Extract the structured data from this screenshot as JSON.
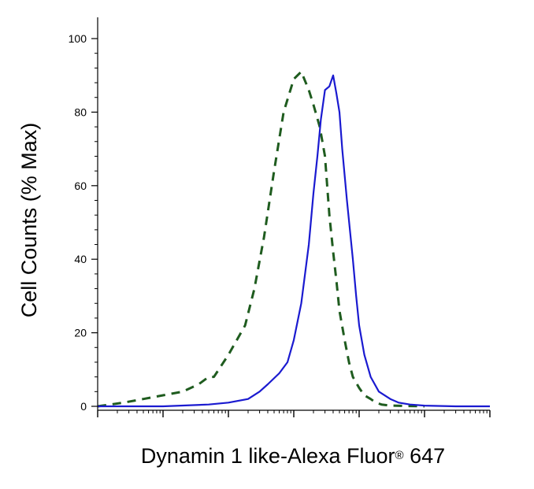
{
  "chart_data": {
    "type": "line",
    "title": "",
    "xlabel": "Dynamin 1 like-Alexa Fluor",
    "xlabel_mark": "®",
    "xlabel_suffix": " 647",
    "ylabel": "Cell Counts (% Max)",
    "x_scale": "log",
    "xlim": [
      1,
      1000000
    ],
    "ylim": [
      0,
      100
    ],
    "y_ticks": [
      0,
      20,
      40,
      60,
      80,
      100
    ],
    "y_tick_labels": [
      "0",
      "20",
      "40",
      "60",
      "80",
      "100"
    ],
    "x_tick_labels": [],
    "grid": false,
    "legend": "none",
    "series": [
      {
        "style": "dashed",
        "color": "#1f5c1f",
        "x": [
          1,
          2.5,
          5,
          10,
          20,
          35,
          50,
          60,
          100,
          180,
          250,
          350,
          500,
          700,
          1000,
          1300,
          1700,
          2000,
          2500,
          3000,
          3500,
          4000,
          4500,
          5000,
          6000,
          7000,
          8000,
          10000,
          12000,
          15000,
          18000,
          22000,
          30000,
          50000,
          100000
        ],
        "y": [
          0,
          1,
          2,
          3,
          4,
          6,
          8,
          8,
          14,
          22,
          32,
          46,
          64,
          80,
          89,
          91,
          86,
          82,
          76,
          68,
          52,
          42,
          34,
          26,
          18,
          12,
          8,
          5,
          3,
          2,
          1,
          0.5,
          0.2,
          0.1,
          0
        ]
      },
      {
        "style": "solid",
        "color": "#1a1ad0",
        "x": [
          1,
          10,
          50,
          100,
          200,
          300,
          400,
          600,
          800,
          1000,
          1300,
          1700,
          2000,
          2300,
          2600,
          3000,
          3500,
          4000,
          4500,
          5000,
          5500,
          6500,
          8000,
          9000,
          10000,
          12000,
          15000,
          20000,
          30000,
          40000,
          60000,
          100000,
          300000,
          1000000
        ],
        "y": [
          0,
          0,
          0.5,
          1,
          2,
          4,
          6,
          9,
          12,
          18,
          28,
          44,
          58,
          68,
          78,
          86,
          87,
          90,
          85,
          80,
          70,
          56,
          40,
          30,
          22,
          14,
          8,
          4,
          2,
          1,
          0.5,
          0.2,
          0,
          0
        ]
      }
    ]
  }
}
